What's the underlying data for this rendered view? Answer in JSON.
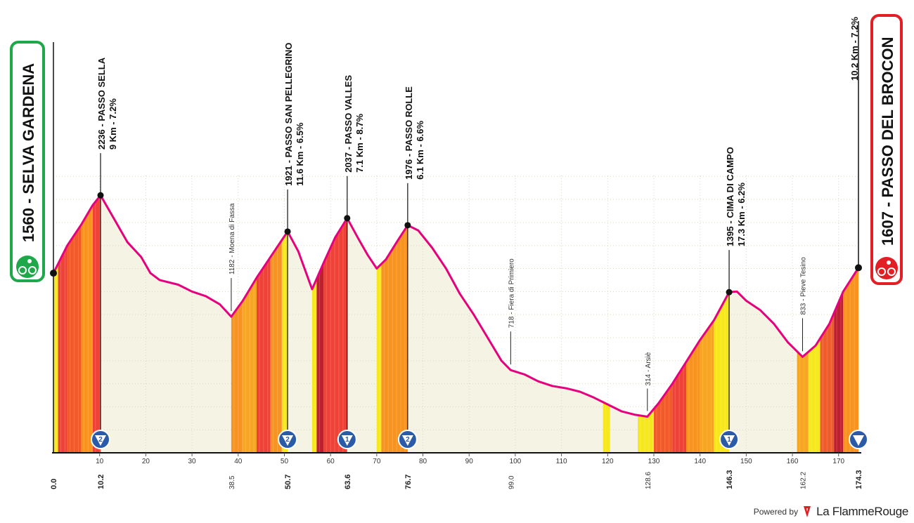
{
  "colors": {
    "accent": "#e6007e",
    "start": "#1ea84a",
    "finish": "#e31e24",
    "fill_bg": "#f4f3e4",
    "grade_colors": [
      "#f6e81c",
      "#f6a623",
      "#f7931e",
      "#f15a29",
      "#ef4136",
      "#be1e2d"
    ]
  },
  "start": {
    "label": "1560 - SELVA GARDENA",
    "icon": "cyclist-icon"
  },
  "finish": {
    "label": "1607 - PASSO DEL BROCON",
    "climb": "10.2 Km - 7.2%",
    "icon": "cyclist-icon"
  },
  "climbs": [
    {
      "km": 10.2,
      "elev": 2236,
      "line1": "2236 - PASSO SELLA",
      "line2": "9 Km - 7.2%",
      "category": "2"
    },
    {
      "km": 50.7,
      "elev": 1921,
      "line1": "1921 - PASSO SAN PELLEGRINO",
      "line2": "11.6 Km - 6.5%",
      "category": "2"
    },
    {
      "km": 63.6,
      "elev": 2037,
      "line1": "2037 - PASSO VALLES",
      "line2": "7.1 Km - 8.7%",
      "category": "1"
    },
    {
      "km": 76.7,
      "elev": 1976,
      "line1": "1976 - PASSO ROLLE",
      "line2": "6.1 Km - 6.6%",
      "category": "2"
    },
    {
      "km": 146.3,
      "elev": 1395,
      "line1": "1395 - CIMA DI CAMPO",
      "line2": "17.3 Km - 6.2%",
      "category": "1"
    }
  ],
  "towns": [
    {
      "km": 38.5,
      "elev": 1182,
      "label": "1182 - Moena di Fassa"
    },
    {
      "km": 99.0,
      "elev": 718,
      "label": "718 - Fiera di Primiero"
    },
    {
      "km": 128.6,
      "elev": 314,
      "label": "314 - Arsiè"
    },
    {
      "km": 162.2,
      "elev": 833,
      "label": "833 - Pieve Tesino"
    }
  ],
  "chart_data": {
    "type": "area",
    "xlabel": "",
    "ylabel": "",
    "xlim": [
      0,
      174.3
    ],
    "ylim": [
      0,
      2400
    ],
    "grid": true,
    "x_ticks": [
      "10",
      "20",
      "30",
      "40",
      "50",
      "60",
      "70",
      "80",
      "90",
      "100",
      "110",
      "120",
      "130",
      "140",
      "150",
      "160",
      "170"
    ],
    "key_km": [
      "0.0",
      "10.2",
      "38.5",
      "50.7",
      "63.6",
      "76.7",
      "99.0",
      "128.6",
      "146.3",
      "162.2",
      "174.3"
    ],
    "profile": [
      [
        0,
        1560
      ],
      [
        3,
        1800
      ],
      [
        6,
        1980
      ],
      [
        8.5,
        2150
      ],
      [
        10.2,
        2236
      ],
      [
        13,
        2040
      ],
      [
        16,
        1830
      ],
      [
        19,
        1700
      ],
      [
        21,
        1560
      ],
      [
        23,
        1500
      ],
      [
        27,
        1460
      ],
      [
        30,
        1400
      ],
      [
        33,
        1360
      ],
      [
        36,
        1290
      ],
      [
        38.5,
        1182
      ],
      [
        41,
        1320
      ],
      [
        44,
        1520
      ],
      [
        47,
        1700
      ],
      [
        49.5,
        1850
      ],
      [
        50.7,
        1921
      ],
      [
        53,
        1750
      ],
      [
        56,
        1420
      ],
      [
        58.5,
        1650
      ],
      [
        61,
        1870
      ],
      [
        63.6,
        2037
      ],
      [
        66,
        1860
      ],
      [
        68,
        1720
      ],
      [
        70,
        1600
      ],
      [
        72,
        1680
      ],
      [
        74.5,
        1840
      ],
      [
        76.7,
        1976
      ],
      [
        79,
        1930
      ],
      [
        82,
        1780
      ],
      [
        85,
        1600
      ],
      [
        88,
        1380
      ],
      [
        91,
        1200
      ],
      [
        94,
        1000
      ],
      [
        97,
        800
      ],
      [
        99,
        718
      ],
      [
        102,
        680
      ],
      [
        105,
        620
      ],
      [
        108,
        580
      ],
      [
        111,
        560
      ],
      [
        114,
        530
      ],
      [
        117,
        480
      ],
      [
        120,
        420
      ],
      [
        123,
        360
      ],
      [
        126,
        330
      ],
      [
        128.6,
        314
      ],
      [
        131,
        430
      ],
      [
        134,
        600
      ],
      [
        137,
        790
      ],
      [
        140,
        980
      ],
      [
        143,
        1150
      ],
      [
        146.3,
        1395
      ],
      [
        148,
        1400
      ],
      [
        150,
        1320
      ],
      [
        153,
        1240
      ],
      [
        156,
        1120
      ],
      [
        159,
        960
      ],
      [
        162.2,
        833
      ],
      [
        165,
        930
      ],
      [
        168,
        1120
      ],
      [
        171,
        1400
      ],
      [
        174.3,
        1607
      ]
    ],
    "segments": [
      {
        "from": 0,
        "to": 1,
        "grade": 0
      },
      {
        "from": 1,
        "to": 3,
        "grade": 4
      },
      {
        "from": 3,
        "to": 6,
        "grade": 3
      },
      {
        "from": 6,
        "to": 8.5,
        "grade": 2
      },
      {
        "from": 8.5,
        "to": 10.2,
        "grade": 4
      },
      {
        "from": 38.5,
        "to": 41,
        "grade": 2
      },
      {
        "from": 41,
        "to": 44,
        "grade": 1
      },
      {
        "from": 44,
        "to": 47,
        "grade": 4
      },
      {
        "from": 47,
        "to": 49.5,
        "grade": 2
      },
      {
        "from": 49.5,
        "to": 50.7,
        "grade": 0
      },
      {
        "from": 56,
        "to": 57,
        "grade": 0
      },
      {
        "from": 57,
        "to": 58.5,
        "grade": 5
      },
      {
        "from": 58.5,
        "to": 63.6,
        "grade": 4
      },
      {
        "from": 70,
        "to": 71,
        "grade": 0
      },
      {
        "from": 71,
        "to": 76.7,
        "grade": 2
      },
      {
        "from": 119,
        "to": 120.5,
        "grade": 0
      },
      {
        "from": 126.5,
        "to": 130,
        "grade": 0
      },
      {
        "from": 130,
        "to": 134,
        "grade": 3
      },
      {
        "from": 134,
        "to": 137,
        "grade": 4
      },
      {
        "from": 137,
        "to": 140,
        "grade": 2
      },
      {
        "from": 140,
        "to": 143,
        "grade": 1
      },
      {
        "from": 143,
        "to": 146.3,
        "grade": 0
      },
      {
        "from": 161,
        "to": 163.5,
        "grade": 1
      },
      {
        "from": 163.5,
        "to": 166,
        "grade": 0
      },
      {
        "from": 166,
        "to": 169,
        "grade": 3
      },
      {
        "from": 169,
        "to": 171,
        "grade": 5
      },
      {
        "from": 171,
        "to": 174.3,
        "grade": 2
      }
    ]
  },
  "footer": {
    "powered_by": "Powered by",
    "brand": "La FlammeRouge"
  }
}
